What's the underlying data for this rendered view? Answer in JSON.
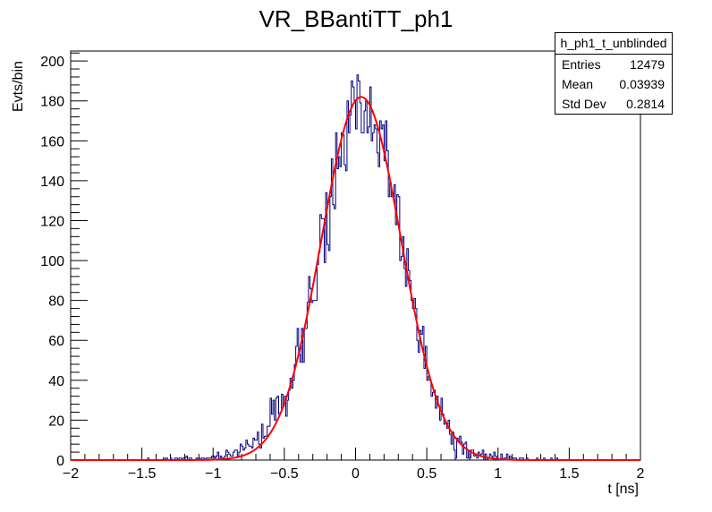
{
  "chart_data": {
    "type": "histogram",
    "title": "VR_BBantiTT_ph1",
    "xlabel": "t [ns]",
    "ylabel": "Evts/bin",
    "xlim": [
      -2,
      2
    ],
    "ylim": [
      0,
      205
    ],
    "xticks": [
      -2,
      -1.5,
      -1,
      -0.5,
      0,
      0.5,
      1,
      1.5,
      2
    ],
    "xtick_labels": [
      "−2",
      "−1.5",
      "−1",
      "−0.5",
      "0",
      "0.5",
      "1",
      "1.5",
      "2"
    ],
    "yticks": [
      0,
      20,
      40,
      60,
      80,
      100,
      120,
      140,
      160,
      180,
      200
    ],
    "ytick_labels": [
      "0",
      "20",
      "40",
      "60",
      "80",
      "100",
      "120",
      "140",
      "160",
      "180",
      "200"
    ],
    "bin_width": 0.01,
    "counts": [
      {
        "x": -1.5,
        "n": 0
      },
      {
        "x": -1.0,
        "n": 1
      },
      {
        "x": -0.9,
        "n": 3
      },
      {
        "x": -0.85,
        "n": 4
      },
      {
        "x": -0.8,
        "n": 6
      },
      {
        "x": -0.75,
        "n": 8
      },
      {
        "x": -0.7,
        "n": 9
      },
      {
        "x": -0.65,
        "n": 12
      },
      {
        "x": -0.6,
        "n": 18
      },
      {
        "x": -0.55,
        "n": 26
      },
      {
        "x": -0.5,
        "n": 32
      },
      {
        "x": -0.45,
        "n": 42
      },
      {
        "x": -0.4,
        "n": 55
      },
      {
        "x": -0.35,
        "n": 70
      },
      {
        "x": -0.3,
        "n": 85
      },
      {
        "x": -0.25,
        "n": 103
      },
      {
        "x": -0.2,
        "n": 120
      },
      {
        "x": -0.15,
        "n": 137
      },
      {
        "x": -0.1,
        "n": 152
      },
      {
        "x": -0.05,
        "n": 167
      },
      {
        "x": 0.0,
        "n": 175
      },
      {
        "x": 0.05,
        "n": 180
      },
      {
        "x": 0.1,
        "n": 178
      },
      {
        "x": 0.15,
        "n": 168
      },
      {
        "x": 0.2,
        "n": 155
      },
      {
        "x": 0.25,
        "n": 138
      },
      {
        "x": 0.3,
        "n": 120
      },
      {
        "x": 0.35,
        "n": 100
      },
      {
        "x": 0.4,
        "n": 80
      },
      {
        "x": 0.45,
        "n": 62
      },
      {
        "x": 0.5,
        "n": 45
      },
      {
        "x": 0.55,
        "n": 32
      },
      {
        "x": 0.6,
        "n": 22
      },
      {
        "x": 0.65,
        "n": 14
      },
      {
        "x": 0.7,
        "n": 9
      },
      {
        "x": 0.75,
        "n": 6
      },
      {
        "x": 0.8,
        "n": 4
      },
      {
        "x": 0.9,
        "n": 2
      },
      {
        "x": 1.0,
        "n": 1
      },
      {
        "x": 1.5,
        "n": 0
      }
    ],
    "series": [
      {
        "name": "h_ph1_t_unblinded",
        "color": "#000080",
        "style": "histogram"
      },
      {
        "name": "gaussian fit",
        "color": "#ff0000",
        "style": "line",
        "constant": 182,
        "mean": 0.04,
        "sigma": 0.28
      }
    ],
    "stats_box": {
      "title": "h_ph1_t_unblinded",
      "rows": [
        {
          "label": "Entries",
          "value": "12479"
        },
        {
          "label": "Mean",
          "value": "0.03939"
        },
        {
          "label": "Std Dev",
          "value": "0.2814"
        }
      ]
    }
  }
}
